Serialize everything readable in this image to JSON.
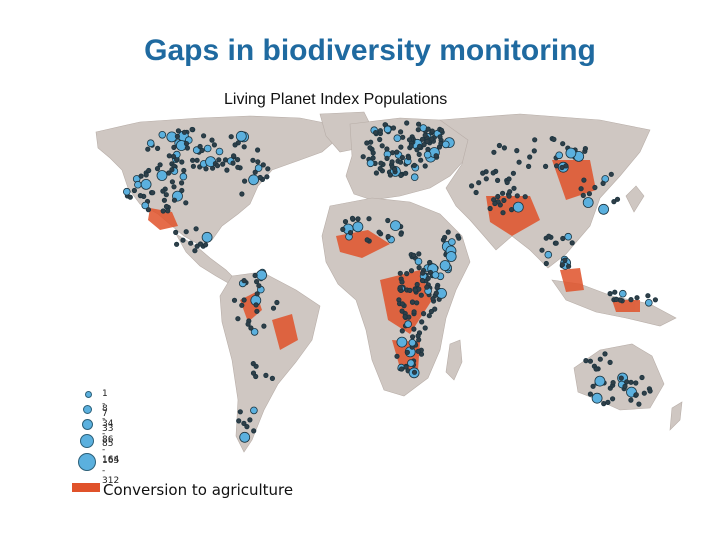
{
  "title": "Gaps in biodiversity monitoring",
  "subtitle": "Living Planet Index Populations",
  "legend": {
    "population_sizes": [
      {
        "label": "1 - 7"
      },
      {
        "label": "8 - 33"
      },
      {
        "label": "34 - 85"
      },
      {
        "label": "86 - 164"
      },
      {
        "label": "165 - 312"
      }
    ],
    "agriculture_label": "Conversion to agriculture"
  },
  "colors": {
    "title": "#1f6aa0",
    "land": "#cfc7c2",
    "population_marker_fill": "#5bb0de",
    "population_marker_stroke": "#1b3440",
    "agriculture": "#e0522a"
  }
}
